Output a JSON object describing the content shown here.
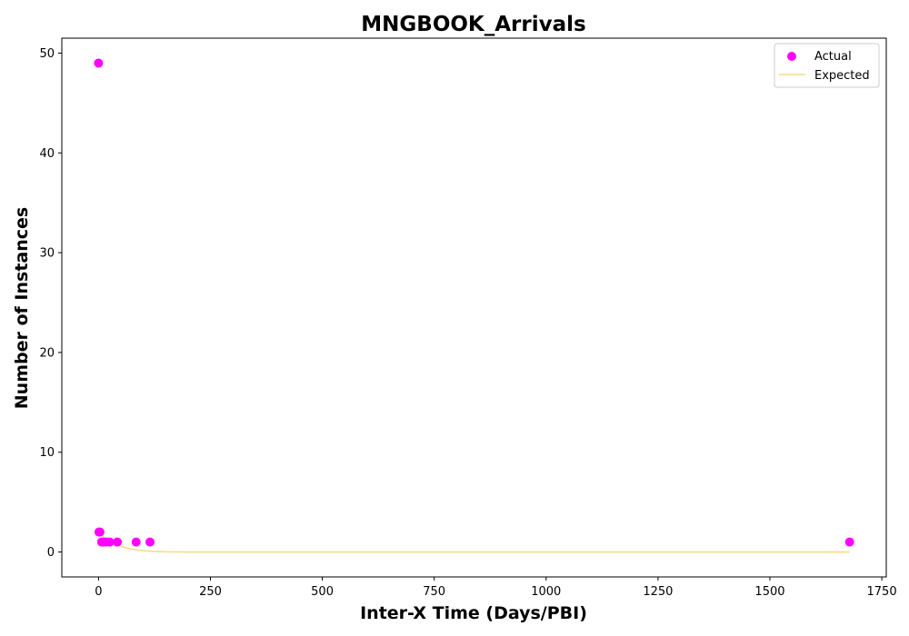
{
  "chart_data": {
    "type": "scatter",
    "title": "MNGBOOK_Arrivals",
    "xlabel": "Inter-X Time (Days/PBI)",
    "ylabel": "Number of Instances",
    "xlim": [
      -82,
      1760
    ],
    "ylim": [
      -2.5,
      51.5
    ],
    "xticks": [
      0,
      250,
      500,
      750,
      1000,
      1250,
      1500,
      1750
    ],
    "yticks": [
      0,
      10,
      20,
      30,
      40,
      50
    ],
    "grid": false,
    "legend_position": "top-right",
    "series": [
      {
        "name": "Actual",
        "kind": "scatter",
        "color": "#ff00ff",
        "points": [
          {
            "x": 0,
            "y": 49
          },
          {
            "x": 1,
            "y": 2
          },
          {
            "x": 3,
            "y": 2
          },
          {
            "x": 7,
            "y": 1
          },
          {
            "x": 12,
            "y": 1
          },
          {
            "x": 18,
            "y": 1
          },
          {
            "x": 25,
            "y": 1
          },
          {
            "x": 42,
            "y": 1
          },
          {
            "x": 84,
            "y": 1
          },
          {
            "x": 115,
            "y": 1
          },
          {
            "x": 1678,
            "y": 1
          }
        ]
      },
      {
        "name": "Expected",
        "kind": "line",
        "color": "#f5dc8a",
        "points": [
          {
            "x": 0,
            "y": 1.9
          },
          {
            "x": 10,
            "y": 1.55
          },
          {
            "x": 20,
            "y": 1.25
          },
          {
            "x": 30,
            "y": 0.98
          },
          {
            "x": 40,
            "y": 0.75
          },
          {
            "x": 55,
            "y": 0.5
          },
          {
            "x": 70,
            "y": 0.32
          },
          {
            "x": 90,
            "y": 0.18
          },
          {
            "x": 115,
            "y": 0.08
          },
          {
            "x": 150,
            "y": 0.02
          },
          {
            "x": 200,
            "y": 0.0
          },
          {
            "x": 400,
            "y": 0.0
          },
          {
            "x": 800,
            "y": 0.0
          },
          {
            "x": 1200,
            "y": 0.0
          },
          {
            "x": 1678,
            "y": 0.0
          }
        ]
      }
    ]
  }
}
